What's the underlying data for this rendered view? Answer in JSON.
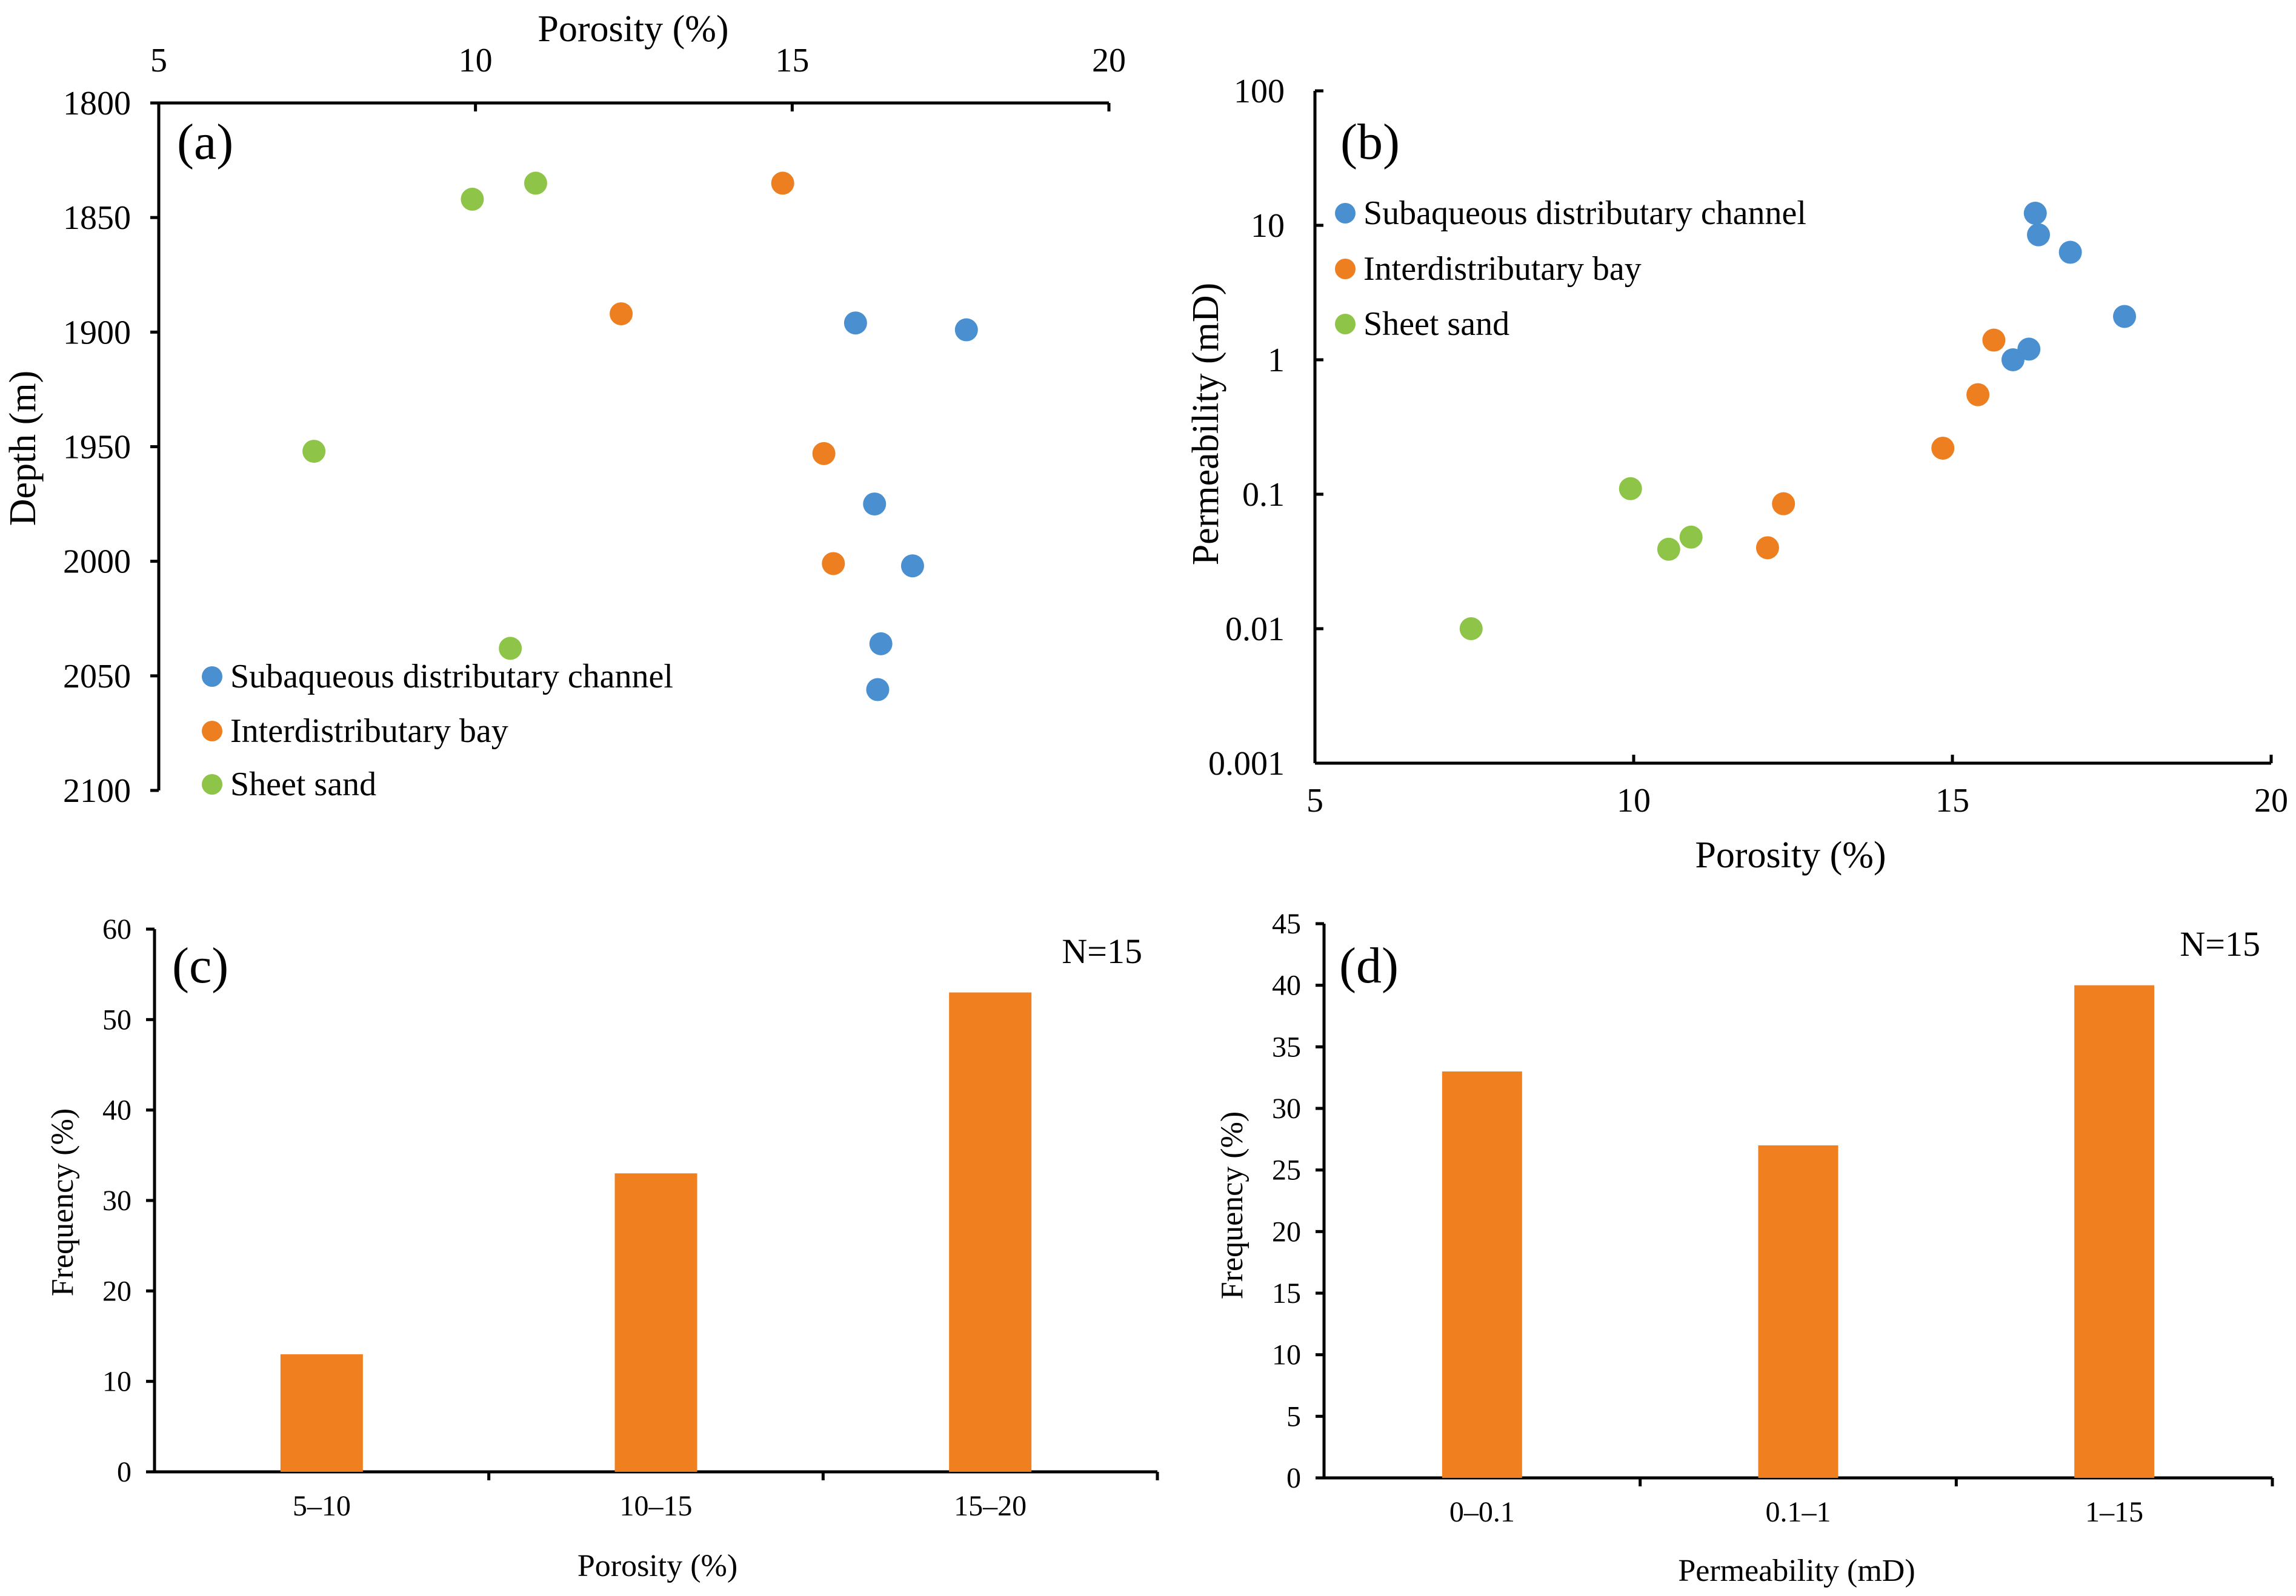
{
  "colors": {
    "channel": "#4a90d1",
    "bay": "#ee7f21",
    "sheet": "#8ec549",
    "bar": "#ef7f1f",
    "axis": "#000000"
  },
  "chart_data": [
    {
      "id": "a",
      "panel_label": "(a)",
      "type": "scatter",
      "title": "",
      "xlabel": "Porosity (%)",
      "ylabel": "Depth (m)",
      "xlim": [
        5,
        20
      ],
      "ylim": [
        1800,
        2100
      ],
      "y_inverted": true,
      "x_axis_position": "top",
      "x_ticks": [
        "5",
        "10",
        "15",
        "20"
      ],
      "y_ticks": [
        "1800",
        "1850",
        "1900",
        "1950",
        "2000",
        "2050",
        "2100"
      ],
      "legend_position": "bottom-left",
      "series": [
        {
          "name": "Subaqueous distributary channel",
          "color_key": "channel",
          "points": [
            [
              16.0,
              1896
            ],
            [
              17.75,
              1899
            ],
            [
              16.3,
              1975
            ],
            [
              16.9,
              2002
            ],
            [
              16.4,
              2036
            ],
            [
              16.35,
              2056
            ]
          ]
        },
        {
          "name": "Interdistributary bay",
          "color_key": "bay",
          "points": [
            [
              14.85,
              1835
            ],
            [
              12.3,
              1892
            ],
            [
              15.5,
              1953
            ],
            [
              15.65,
              2001
            ]
          ]
        },
        {
          "name": "Sheet sand",
          "color_key": "sheet",
          "points": [
            [
              9.95,
              1842
            ],
            [
              10.95,
              1835
            ],
            [
              7.45,
              1952
            ],
            [
              10.55,
              2038
            ]
          ]
        }
      ]
    },
    {
      "id": "b",
      "panel_label": "(b)",
      "type": "scatter",
      "title": "",
      "xlabel": "Porosity (%)",
      "ylabel": "Permeability (mD)",
      "xlim": [
        5,
        20
      ],
      "ylim": [
        0.001,
        100
      ],
      "y_scale": "log",
      "x_ticks": [
        "5",
        "10",
        "15",
        "20"
      ],
      "y_ticks": [
        "0.001",
        "0.01",
        "0.1",
        "1",
        "10",
        "100"
      ],
      "legend_position": "top-left",
      "series": [
        {
          "name": "Subaqueous distributary channel",
          "color_key": "channel",
          "points": [
            [
              16.3,
              12.3
            ],
            [
              16.35,
              8.5
            ],
            [
              16.85,
              6.3
            ],
            [
              17.7,
              2.1
            ],
            [
              16.2,
              1.2
            ],
            [
              15.95,
              1.0
            ]
          ]
        },
        {
          "name": "Interdistributary bay",
          "color_key": "bay",
          "points": [
            [
              15.65,
              1.4
            ],
            [
              15.4,
              0.55
            ],
            [
              14.85,
              0.22
            ],
            [
              12.35,
              0.085
            ],
            [
              12.1,
              0.04
            ]
          ]
        },
        {
          "name": "Sheet sand",
          "color_key": "sheet",
          "points": [
            [
              9.95,
              0.11
            ],
            [
              10.9,
              0.048
            ],
            [
              10.55,
              0.039
            ],
            [
              7.45,
              0.01
            ]
          ]
        }
      ]
    },
    {
      "id": "c",
      "panel_label": "(c)",
      "type": "bar",
      "title": "",
      "annotation": "N=15",
      "xlabel": "Porosity (%)",
      "ylabel": "Frequency (%)",
      "ylim": [
        0,
        60
      ],
      "y_ticks": [
        "0",
        "10",
        "20",
        "30",
        "40",
        "50",
        "60"
      ],
      "categories": [
        "5–10",
        "10–15",
        "15–20"
      ],
      "values": [
        13,
        33,
        53
      ]
    },
    {
      "id": "d",
      "panel_label": "(d)",
      "type": "bar",
      "title": "",
      "annotation": "N=15",
      "xlabel": "Permeability (mD)",
      "ylabel": "Frequency (%)",
      "ylim": [
        0,
        45
      ],
      "y_ticks": [
        "0",
        "5",
        "10",
        "15",
        "20",
        "25",
        "30",
        "35",
        "40",
        "45"
      ],
      "categories": [
        "0–0.1",
        "0.1–1",
        "1–15"
      ],
      "values": [
        33,
        27,
        40
      ]
    }
  ]
}
